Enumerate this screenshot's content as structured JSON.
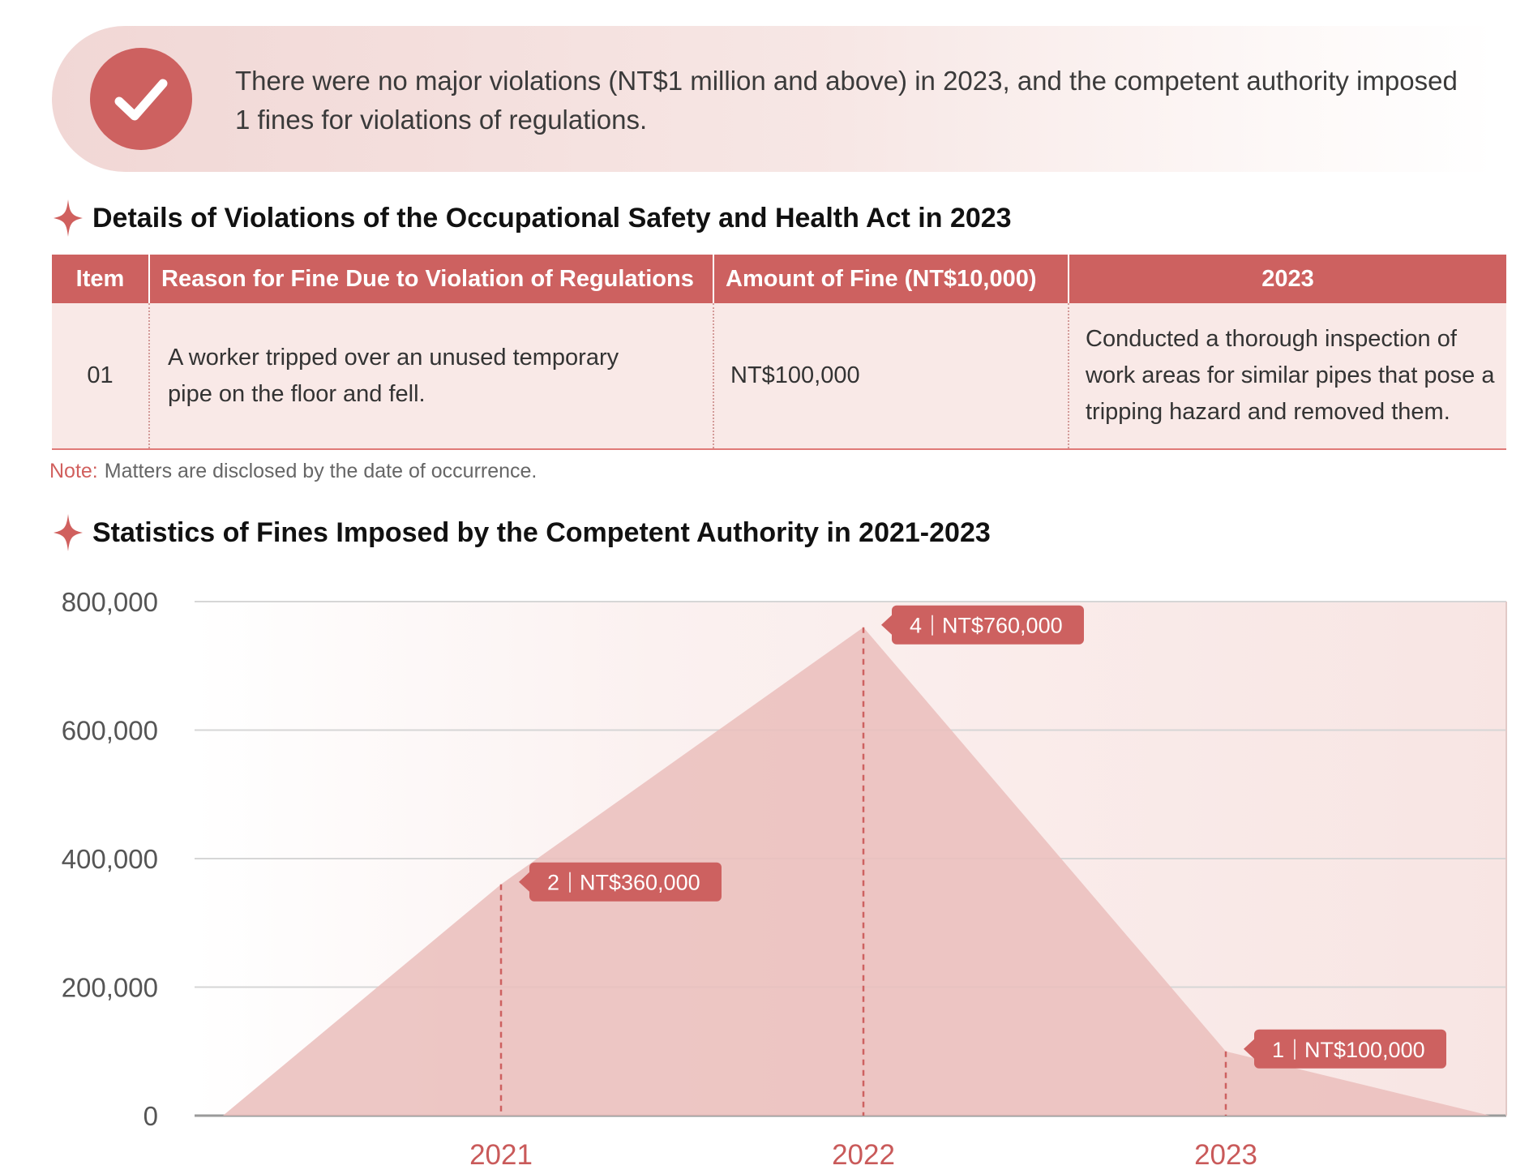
{
  "notice": {
    "icon": "check-icon",
    "text": "There were no major violations (NT$1 million and above) in 2023, and the competent authority imposed 1 fines for violations of regulations."
  },
  "details": {
    "title": "Details of Violations of the Occupational Safety and Health Act in 2023",
    "headers": {
      "item": "Item",
      "reason": "Reason for Fine Due to Violation of Regulations",
      "amount": "Amount of Fine (NT$10,000)",
      "year": "2023"
    },
    "rows": [
      {
        "item": "01",
        "reason": "A worker tripped over an unused temporary pipe on the floor and fell.",
        "amount": "NT$100,000",
        "year": "Conducted a thorough inspection of work areas for similar pipes that pose a tripping hazard and removed them."
      }
    ],
    "note_label": "Note:",
    "note_text": "Matters are disclosed by the date of occurrence."
  },
  "stats": {
    "title": "Statistics of Fines Imposed by the Competent Authority in 2021-2023"
  },
  "colors": {
    "accent": "#cd6160",
    "area_fill": "#eabfbd",
    "year_label": "#c95a5a"
  },
  "chart_data": {
    "type": "area",
    "categories": [
      "2021",
      "2022",
      "2023"
    ],
    "series": [
      {
        "values": [
          360000,
          760000,
          100000
        ],
        "counts": [
          2,
          4,
          1
        ],
        "labels": [
          "NT$360,000",
          "NT$760,000",
          "NT$100,000"
        ]
      }
    ],
    "yticks": [
      "0",
      "200,000",
      "400,000",
      "600,000",
      "800,000"
    ],
    "ylim": [
      0,
      800000
    ],
    "grid": true,
    "title": "",
    "xlabel": "",
    "ylabel": ""
  }
}
